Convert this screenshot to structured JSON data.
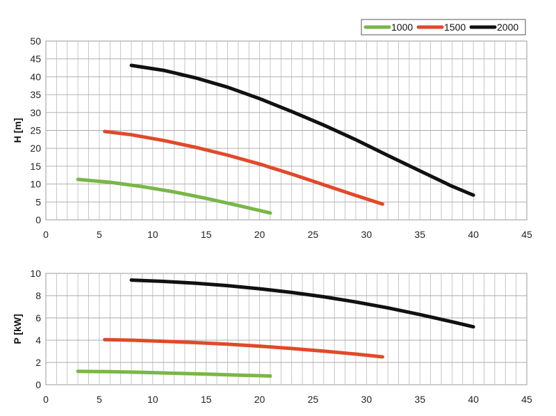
{
  "legend": {
    "placement": "top-right",
    "entries": [
      {
        "label": "1000",
        "color": "#7ab648"
      },
      {
        "label": "1500",
        "color": "#e04a2a"
      },
      {
        "label": "2000",
        "color": "#111111"
      }
    ]
  },
  "chart_data": [
    {
      "type": "line",
      "ylabel": "H [m]",
      "xlabel": "",
      "xlim": [
        0,
        45
      ],
      "ylim": [
        0,
        50
      ],
      "xticks": [
        0,
        5,
        10,
        15,
        20,
        25,
        30,
        35,
        40,
        45
      ],
      "yticks": [
        0,
        5,
        10,
        15,
        20,
        25,
        30,
        35,
        40,
        45,
        50
      ],
      "grid": {
        "horizontal_step": 5,
        "vertical_step": 1
      },
      "series": [
        {
          "name": "1000",
          "color": "#7ab648",
          "x": [
            3,
            6,
            9,
            12,
            15,
            18,
            21
          ],
          "y": [
            11.3,
            10.5,
            9.3,
            7.8,
            6.0,
            4.0,
            1.9
          ]
        },
        {
          "name": "1500",
          "color": "#e04a2a",
          "x": [
            5.5,
            8,
            11,
            14,
            17,
            20,
            23,
            26,
            29,
            31.5
          ],
          "y": [
            24.7,
            23.8,
            22.2,
            20.3,
            18.1,
            15.6,
            12.8,
            9.8,
            6.8,
            4.4
          ]
        },
        {
          "name": "2000",
          "color": "#111111",
          "x": [
            8,
            11,
            14,
            17,
            20,
            23,
            26,
            29,
            32,
            35,
            38,
            40
          ],
          "y": [
            43.2,
            41.8,
            39.7,
            37.1,
            33.9,
            30.3,
            26.5,
            22.4,
            18.0,
            13.7,
            9.4,
            6.9
          ]
        }
      ]
    },
    {
      "type": "line",
      "ylabel": "P [kW]",
      "xlabel": "",
      "xlim": [
        0,
        45
      ],
      "ylim": [
        0,
        10
      ],
      "xticks": [
        0,
        5,
        10,
        15,
        20,
        25,
        30,
        35,
        40,
        45
      ],
      "yticks": [
        0,
        2,
        4,
        6,
        8,
        10
      ],
      "grid": {
        "horizontal_step": 2,
        "vertical_step": 1
      },
      "series": [
        {
          "name": "1000",
          "color": "#7ab648",
          "x": [
            3,
            6,
            9,
            12,
            15,
            18,
            21
          ],
          "y": [
            1.2,
            1.17,
            1.11,
            1.03,
            0.95,
            0.86,
            0.78
          ]
        },
        {
          "name": "1500",
          "color": "#e04a2a",
          "x": [
            5.5,
            8,
            11,
            14,
            17,
            20,
            23,
            26,
            29,
            31.5
          ],
          "y": [
            4.05,
            4.0,
            3.9,
            3.78,
            3.64,
            3.46,
            3.25,
            3.02,
            2.75,
            2.5
          ]
        },
        {
          "name": "2000",
          "color": "#111111",
          "x": [
            8,
            11,
            14,
            17,
            20,
            23,
            26,
            29,
            32,
            35,
            38,
            40
          ],
          "y": [
            9.4,
            9.28,
            9.12,
            8.9,
            8.62,
            8.29,
            7.9,
            7.43,
            6.9,
            6.3,
            5.65,
            5.2
          ]
        }
      ]
    }
  ]
}
